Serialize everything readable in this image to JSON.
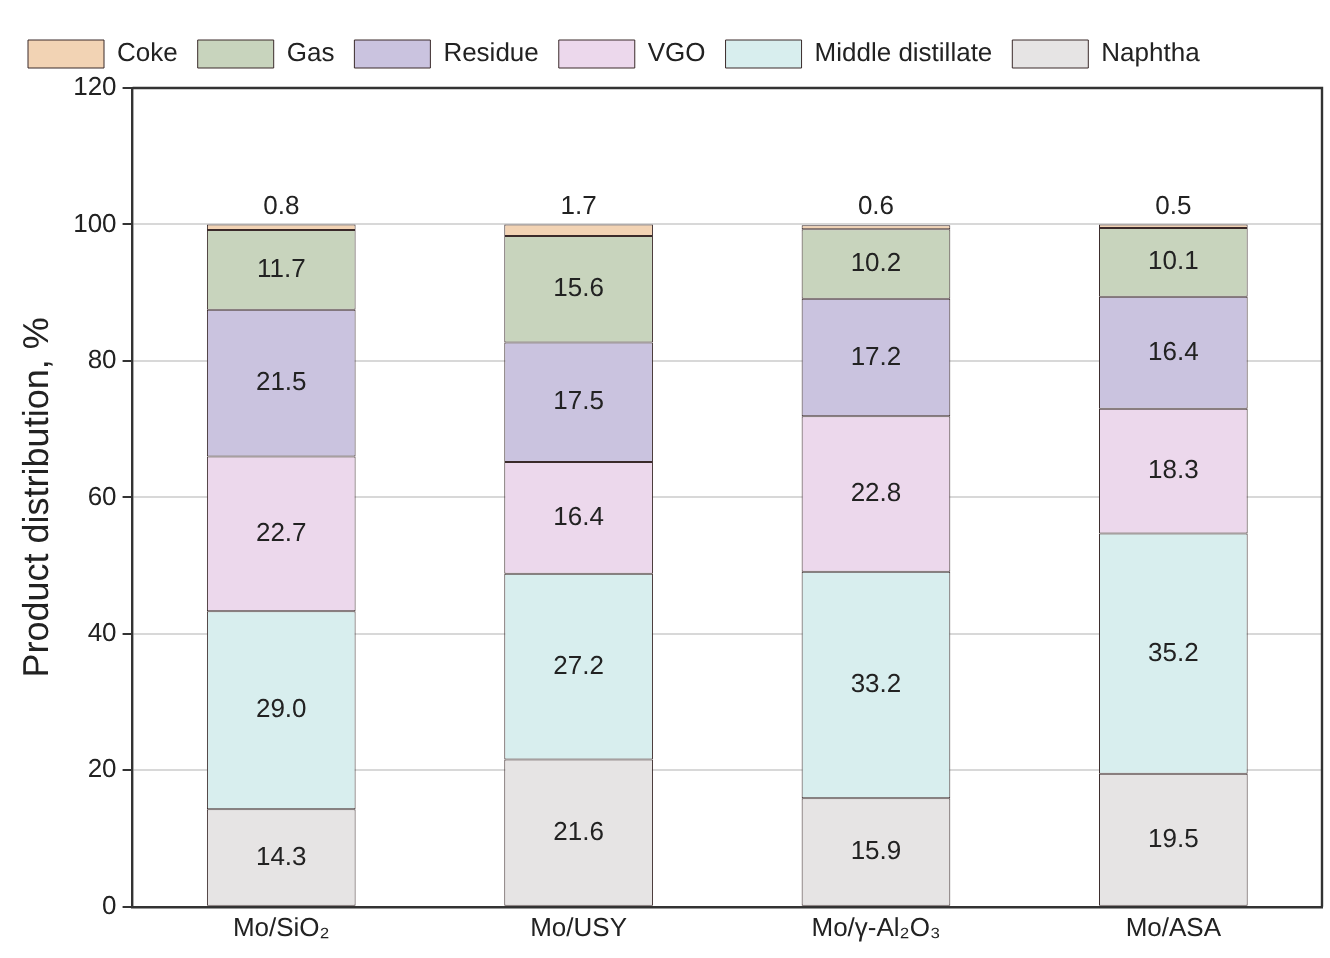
{
  "chart_data": {
    "type": "bar",
    "stacked": true,
    "ylabel": "Product distribution, %",
    "categories": [
      "Mo/SiO₂",
      "Mo/USY",
      "Mo/γ-Al₂O₃",
      "Mo/ASA"
    ],
    "series": [
      {
        "name": "Naphtha",
        "color": "#e6e4e4",
        "values": [
          14.3,
          21.6,
          15.9,
          19.5
        ],
        "value_labels": [
          "14.3",
          "21.6",
          "15.9",
          "19.5"
        ]
      },
      {
        "name": "Middle distillate",
        "color": "#d8eeee",
        "values": [
          29.0,
          27.2,
          33.2,
          35.2
        ],
        "value_labels": [
          "29.0",
          "27.2",
          "33.2",
          "35.2"
        ]
      },
      {
        "name": "VGO",
        "color": "#ecd8ec",
        "values": [
          22.7,
          16.4,
          22.8,
          18.3
        ],
        "value_labels": [
          "22.7",
          "16.4",
          "22.8",
          "18.3"
        ]
      },
      {
        "name": "Residue",
        "color": "#cac3df",
        "values": [
          21.5,
          17.5,
          17.2,
          16.4
        ],
        "value_labels": [
          "21.5",
          "17.5",
          "17.2",
          "16.4"
        ]
      },
      {
        "name": "Gas",
        "color": "#c8d4bd",
        "values": [
          11.7,
          15.6,
          10.2,
          10.1
        ],
        "value_labels": [
          "11.7",
          "15.6",
          "10.2",
          "10.1"
        ]
      },
      {
        "name": "Coke",
        "color": "#f2d3b4",
        "values": [
          0.8,
          1.7,
          0.6,
          0.5
        ],
        "value_labels": [
          "0.8",
          "1.7",
          "0.6",
          "0.5"
        ]
      }
    ],
    "ylim": [
      0,
      120
    ],
    "yticks": [
      0,
      20,
      40,
      60,
      80,
      100,
      120
    ],
    "grid": "y",
    "legend": "top left"
  }
}
